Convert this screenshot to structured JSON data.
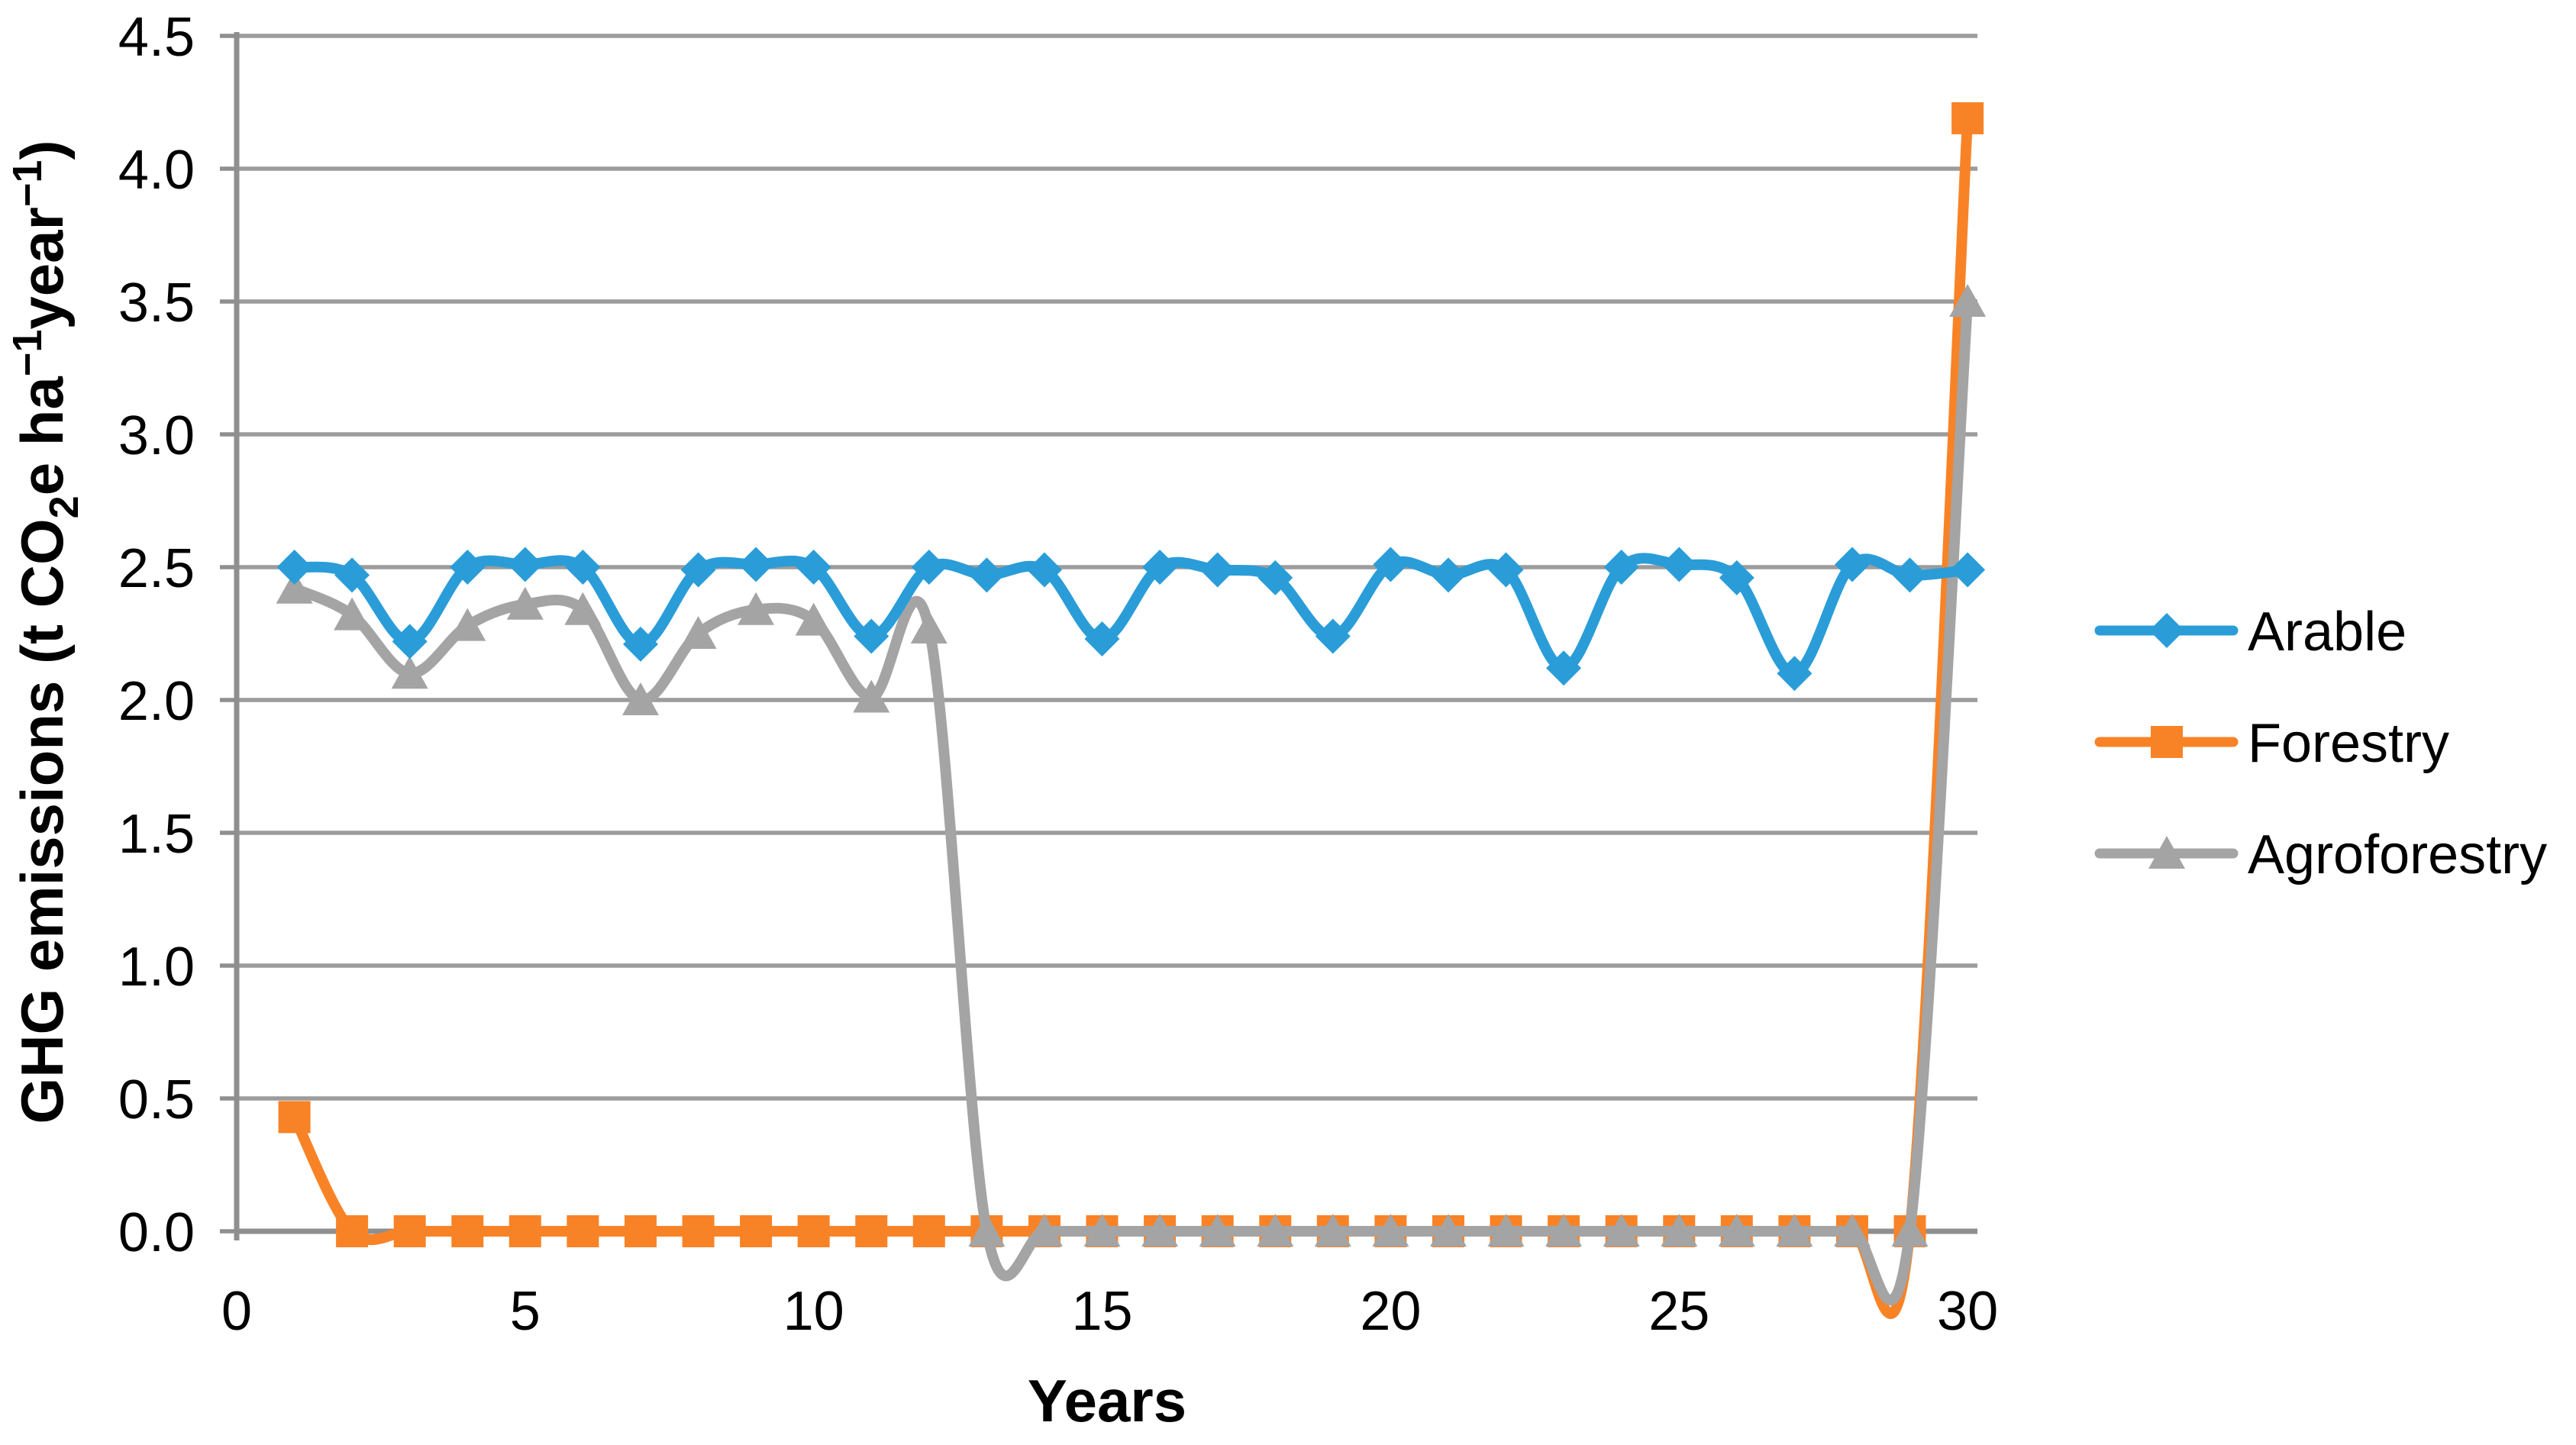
{
  "chart_data": {
    "type": "line",
    "title": "",
    "xlabel": "Years",
    "ylabel": "GHG emissions (t CO2e ha−1year−1)",
    "ylabel_parts": [
      {
        "t": "GHG emissions (t CO"
      },
      {
        "t": "2",
        "s": "sub"
      },
      {
        "t": "e ha"
      },
      {
        "t": "−1",
        "s": "sup"
      },
      {
        "t": "year"
      },
      {
        "t": "−1",
        "s": "sup"
      },
      {
        "t": ")"
      }
    ],
    "x_years": [
      1,
      2,
      3,
      4,
      5,
      6,
      7,
      8,
      9,
      10,
      11,
      12,
      13,
      14,
      15,
      16,
      17,
      18,
      19,
      20,
      21,
      22,
      23,
      24,
      25,
      26,
      27,
      28,
      29,
      30
    ],
    "xlim": [
      0,
      30
    ],
    "ylim": [
      0,
      4.5
    ],
    "xticks": [
      0,
      5,
      10,
      15,
      20,
      25,
      30
    ],
    "xtick_labels": [
      "0",
      "5",
      "10",
      "15",
      "20",
      "25",
      "30"
    ],
    "yticks": [
      0,
      0.5,
      1,
      1.5,
      2,
      2.5,
      3,
      3.5,
      4,
      4.5
    ],
    "ytick_labels": [
      "0.0",
      "0.5",
      "1.0",
      "1.5",
      "2.0",
      "2.5",
      "3.0",
      "3.5",
      "4.0",
      "4.5"
    ],
    "grid": "horizontal",
    "legend_position": "right",
    "colors": {
      "grid": "#9C9C9C",
      "axis": "#8F8F8F",
      "text": "#000000",
      "background": "#FFFFFF",
      "arable": "#2A9DD8",
      "forestry": "#F88327",
      "agroforestry": "#A4A4A4"
    },
    "draw_order": [
      "Forestry",
      "Agroforestry",
      "Arable"
    ],
    "series": [
      {
        "name": "Arable",
        "color": "#2A9DD8",
        "marker": "diamond",
        "values": [
          2.5,
          2.47,
          2.22,
          2.5,
          2.51,
          2.5,
          2.21,
          2.49,
          2.51,
          2.5,
          2.24,
          2.5,
          2.47,
          2.49,
          2.23,
          2.5,
          2.49,
          2.46,
          2.24,
          2.51,
          2.47,
          2.49,
          2.12,
          2.5,
          2.51,
          2.46,
          2.1,
          2.51,
          2.47,
          2.49
        ]
      },
      {
        "name": "Forestry",
        "color": "#F88327",
        "marker": "square",
        "values": [
          0.43,
          0,
          0,
          0,
          0,
          0,
          0,
          0,
          0,
          0,
          0,
          0,
          0,
          0,
          0,
          0,
          0,
          0,
          0,
          0,
          0,
          0,
          0,
          0,
          0,
          0,
          0,
          0,
          0,
          4.19
        ]
      },
      {
        "name": "Agroforestry",
        "color": "#A4A4A4",
        "marker": "triangle",
        "values": [
          2.42,
          2.32,
          2.1,
          2.28,
          2.36,
          2.34,
          2.0,
          2.25,
          2.34,
          2.3,
          2.01,
          2.27,
          0,
          0,
          0,
          0,
          0,
          0,
          0,
          0,
          0,
          0,
          0,
          0,
          0,
          0,
          0,
          0,
          0,
          3.5
        ]
      }
    ]
  }
}
